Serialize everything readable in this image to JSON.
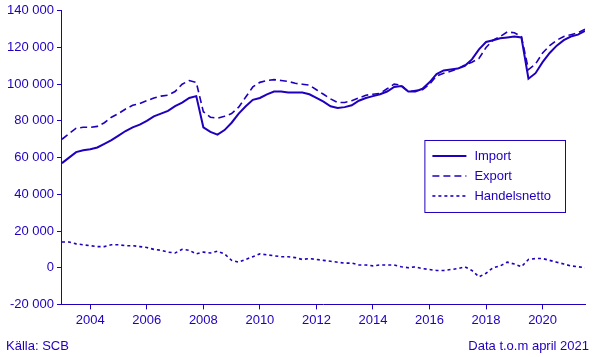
{
  "chart_data": {
    "type": "line",
    "x": [
      2003,
      2003.25,
      2003.5,
      2003.75,
      2004,
      2004.25,
      2004.5,
      2004.75,
      2005,
      2005.25,
      2005.5,
      2005.75,
      2006,
      2006.25,
      2006.5,
      2006.75,
      2007,
      2007.25,
      2007.5,
      2007.75,
      2008,
      2008.25,
      2008.5,
      2008.75,
      2009,
      2009.25,
      2009.5,
      2009.75,
      2010,
      2010.25,
      2010.5,
      2010.75,
      2011,
      2011.25,
      2011.5,
      2011.75,
      2012,
      2012.25,
      2012.5,
      2012.75,
      2013,
      2013.25,
      2013.5,
      2013.75,
      2014,
      2014.25,
      2014.5,
      2014.75,
      2015,
      2015.25,
      2015.5,
      2015.75,
      2016,
      2016.25,
      2016.5,
      2016.75,
      2017,
      2017.25,
      2017.5,
      2017.75,
      2018,
      2018.25,
      2018.5,
      2018.75,
      2019,
      2019.25,
      2019.5,
      2019.75,
      2020,
      2020.25,
      2020.5,
      2020.75,
      2021,
      2021.25,
      2021.5
    ],
    "series": [
      {
        "name": "Import",
        "color": "#1e00be",
        "line_style": "solid",
        "values": [
          57000,
          60000,
          63000,
          64000,
          64500,
          65500,
          67500,
          69500,
          72000,
          74500,
          76500,
          78000,
          80000,
          82500,
          84000,
          85500,
          88000,
          90000,
          92500,
          93500,
          76500,
          74000,
          72500,
          75000,
          79000,
          84000,
          88000,
          91500,
          92500,
          94500,
          96000,
          96000,
          95500,
          95500,
          95500,
          94500,
          92500,
          90500,
          88000,
          87000,
          87500,
          88500,
          91000,
          92500,
          93500,
          94500,
          96000,
          98500,
          99000,
          96000,
          96000,
          97500,
          101000,
          105500,
          107500,
          108000,
          108500,
          110000,
          113500,
          119000,
          123000,
          124000,
          125000,
          125500,
          126000,
          125500,
          103000,
          106000,
          112000,
          117000,
          121000,
          124000,
          126000,
          127000,
          129000
        ]
      },
      {
        "name": "Export",
        "color": "#1e00be",
        "line_style": "dashed",
        "values": [
          70000,
          73000,
          76000,
          76500,
          76500,
          77000,
          79000,
          82000,
          84000,
          86500,
          88500,
          89500,
          91000,
          92500,
          93500,
          94000,
          96000,
          100000,
          102000,
          101000,
          85000,
          82000,
          81500,
          82500,
          84000,
          87500,
          93000,
          98500,
          101000,
          102000,
          102500,
          102000,
          101500,
          100500,
          100000,
          99500,
          97000,
          94500,
          92000,
          90000,
          90000,
          91000,
          92500,
          94000,
          94500,
          95000,
          97500,
          100000,
          99500,
          96000,
          96500,
          97000,
          100000,
          104500,
          106000,
          107000,
          108500,
          110500,
          112000,
          114000,
          120000,
          124000,
          126000,
          128500,
          128000,
          126000,
          108000,
          111000,
          117000,
          121000,
          124000,
          126000,
          127000,
          128000,
          130000
        ]
      },
      {
        "name": "Handelsnetto",
        "color": "#1e00be",
        "line_style": "dotted",
        "values": [
          14000,
          14000,
          13000,
          12500,
          12000,
          11500,
          11500,
          12500,
          12500,
          12000,
          12000,
          11500,
          11000,
          10000,
          9500,
          8500,
          8000,
          10000,
          9500,
          7500,
          8500,
          8000,
          9000,
          7500,
          4000,
          3000,
          4500,
          6000,
          7500,
          7000,
          6500,
          6000,
          6000,
          5500,
          4500,
          5000,
          4500,
          4000,
          3500,
          3000,
          2500,
          2500,
          1500,
          1500,
          1000,
          1500,
          1500,
          1500,
          500,
          0,
          500,
          -500,
          -1000,
          -1500,
          -1500,
          -1000,
          -500,
          500,
          -1500,
          -5000,
          -3000,
          0,
          1000,
          3000,
          2000,
          500,
          4500,
          5000,
          5000,
          4000,
          3000,
          2000,
          1000,
          500,
          0
        ]
      }
    ],
    "xlim": [
      2003,
      2021.5
    ],
    "xticks": [
      2004,
      2006,
      2008,
      2010,
      2012,
      2014,
      2016,
      2018,
      2020
    ],
    "ylim": [
      -20000,
      140000
    ],
    "yticks": [
      {
        "value": -20000,
        "label": "-20 000"
      },
      0,
      {
        "value": 20000,
        "label": "20 000"
      },
      {
        "value": 40000,
        "label": "40 000"
      },
      {
        "value": 60000,
        "label": "60 000"
      },
      {
        "value": 80000,
        "label": "80 000"
      },
      {
        "value": 100000,
        "label": "100 000"
      },
      {
        "value": 120000,
        "label": "120 000"
      },
      {
        "value": 140000,
        "label": "140 000"
      }
    ],
    "grid": false,
    "legend": "right",
    "source": "Källa: SCB",
    "note": "Data t.o.m april 2021"
  }
}
